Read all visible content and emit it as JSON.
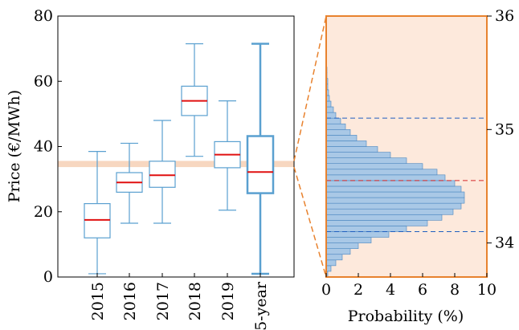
{
  "chart_data": [
    {
      "type": "box",
      "ylabel": "Price (€/MWh)",
      "ylim": [
        0,
        80
      ],
      "yticks": [
        0,
        20,
        40,
        60,
        80
      ],
      "categories": [
        "2015",
        "2016",
        "2017",
        "2018",
        "2019",
        "5-year"
      ],
      "boxes": [
        {
          "min": 1,
          "q1": 12,
          "median": 17.5,
          "q3": 22.5,
          "max": 38.5
        },
        {
          "min": 16.5,
          "q1": 26,
          "median": 29,
          "q3": 32,
          "max": 41
        },
        {
          "min": 16.5,
          "q1": 27.5,
          "median": 31.2,
          "q3": 35.5,
          "max": 48
        },
        {
          "min": 37,
          "q1": 49.5,
          "median": 54,
          "q3": 58.5,
          "max": 71.5
        },
        {
          "min": 20.5,
          "q1": 33.5,
          "median": 37.5,
          "q3": 41.5,
          "max": 54
        },
        {
          "min": 1,
          "q1": 25.7,
          "median": 32.2,
          "q3": 43.2,
          "max": 71.5
        }
      ],
      "highlight_band": [
        33.7,
        35.6
      ]
    },
    {
      "type": "histogram",
      "orientation": "horizontal",
      "xlabel": "Probability (%)",
      "xlim": [
        0,
        10
      ],
      "xticks": [
        0,
        2,
        4,
        6,
        8,
        10
      ],
      "ylim": [
        33.7,
        36
      ],
      "yticks": [
        34,
        35,
        36
      ],
      "bins": [
        {
          "center": 33.725,
          "value": 0.1
        },
        {
          "center": 33.775,
          "value": 0.3
        },
        {
          "center": 33.825,
          "value": 0.6
        },
        {
          "center": 33.875,
          "value": 1.0
        },
        {
          "center": 33.925,
          "value": 1.5
        },
        {
          "center": 33.975,
          "value": 2.0
        },
        {
          "center": 34.025,
          "value": 2.8
        },
        {
          "center": 34.075,
          "value": 3.9
        },
        {
          "center": 34.125,
          "value": 5.0
        },
        {
          "center": 34.175,
          "value": 6.3
        },
        {
          "center": 34.225,
          "value": 7.2
        },
        {
          "center": 34.275,
          "value": 7.9
        },
        {
          "center": 34.325,
          "value": 8.4
        },
        {
          "center": 34.375,
          "value": 8.6
        },
        {
          "center": 34.425,
          "value": 8.6
        },
        {
          "center": 34.475,
          "value": 8.4
        },
        {
          "center": 34.525,
          "value": 8.0
        },
        {
          "center": 34.575,
          "value": 7.4
        },
        {
          "center": 34.625,
          "value": 6.9
        },
        {
          "center": 34.675,
          "value": 6.0
        },
        {
          "center": 34.725,
          "value": 5.0
        },
        {
          "center": 34.775,
          "value": 4.0
        },
        {
          "center": 34.825,
          "value": 3.2
        },
        {
          "center": 34.875,
          "value": 2.5
        },
        {
          "center": 34.925,
          "value": 1.9
        },
        {
          "center": 34.975,
          "value": 1.5
        },
        {
          "center": 35.025,
          "value": 1.2
        },
        {
          "center": 35.075,
          "value": 0.9
        },
        {
          "center": 35.125,
          "value": 0.6
        },
        {
          "center": 35.175,
          "value": 0.45
        },
        {
          "center": 35.225,
          "value": 0.3
        },
        {
          "center": 35.275,
          "value": 0.2
        },
        {
          "center": 35.325,
          "value": 0.15
        },
        {
          "center": 35.375,
          "value": 0.1
        },
        {
          "center": 35.425,
          "value": 0.1
        },
        {
          "center": 35.475,
          "value": 0.05
        },
        {
          "center": 35.525,
          "value": 0.05
        },
        {
          "center": 35.575,
          "value": 0.03
        }
      ],
      "reference_lines": [
        {
          "value": 34.55,
          "color": "#d62728"
        },
        {
          "value": 35.1,
          "color": "#1f5fbf"
        },
        {
          "value": 34.1,
          "color": "#1f5fbf"
        }
      ]
    }
  ],
  "colors": {
    "box": "#5aa0d0",
    "median": "#e01010",
    "band": "#f7d7c0",
    "accent": "#e8822e",
    "panel_bg": "#fde9dc",
    "bar_fill": "#a9c8e6",
    "bar_edge": "#4a86bf"
  }
}
